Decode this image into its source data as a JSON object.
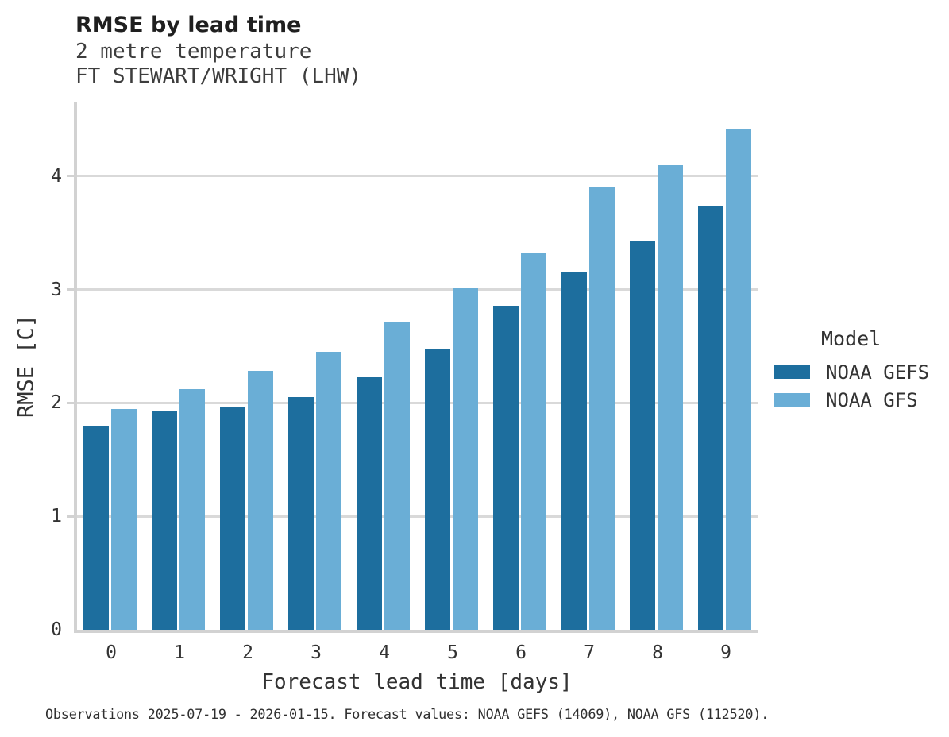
{
  "header": {
    "title": "RMSE by lead time",
    "subtitle1": "2 metre temperature",
    "subtitle2": "FT STEWART/WRIGHT (LHW)"
  },
  "chart_data": {
    "type": "bar",
    "title": "RMSE by lead time",
    "subtitle": "2 metre temperature — FT STEWART/WRIGHT (LHW)",
    "categories": [
      "0",
      "1",
      "2",
      "3",
      "4",
      "5",
      "6",
      "7",
      "8",
      "9"
    ],
    "series": [
      {
        "name": "NOAA GEFS",
        "color": "#1d6e9e",
        "values": [
          1.8,
          1.93,
          1.96,
          2.05,
          2.23,
          2.48,
          2.86,
          3.16,
          3.43,
          3.74
        ]
      },
      {
        "name": "NOAA GFS",
        "color": "#6aaed6",
        "values": [
          1.95,
          2.12,
          2.28,
          2.45,
          2.72,
          3.01,
          3.32,
          3.9,
          4.1,
          4.41
        ]
      }
    ],
    "xlabel": "Forecast lead time [days]",
    "ylabel": "RMSE [C]",
    "ylim": [
      0,
      4.65
    ],
    "yticks": [
      0,
      1,
      2,
      3,
      4
    ],
    "grid": true,
    "legend_title": "Model",
    "legend_position": "right"
  },
  "footer": {
    "caption": "Observations 2025-07-19 - 2026-01-15. Forecast values: NOAA GEFS (14069), NOAA GFS (112520)."
  },
  "colors": {
    "axis": "#d2d2d2",
    "gridline": "#d9d9d9",
    "background": "#ffffff"
  }
}
